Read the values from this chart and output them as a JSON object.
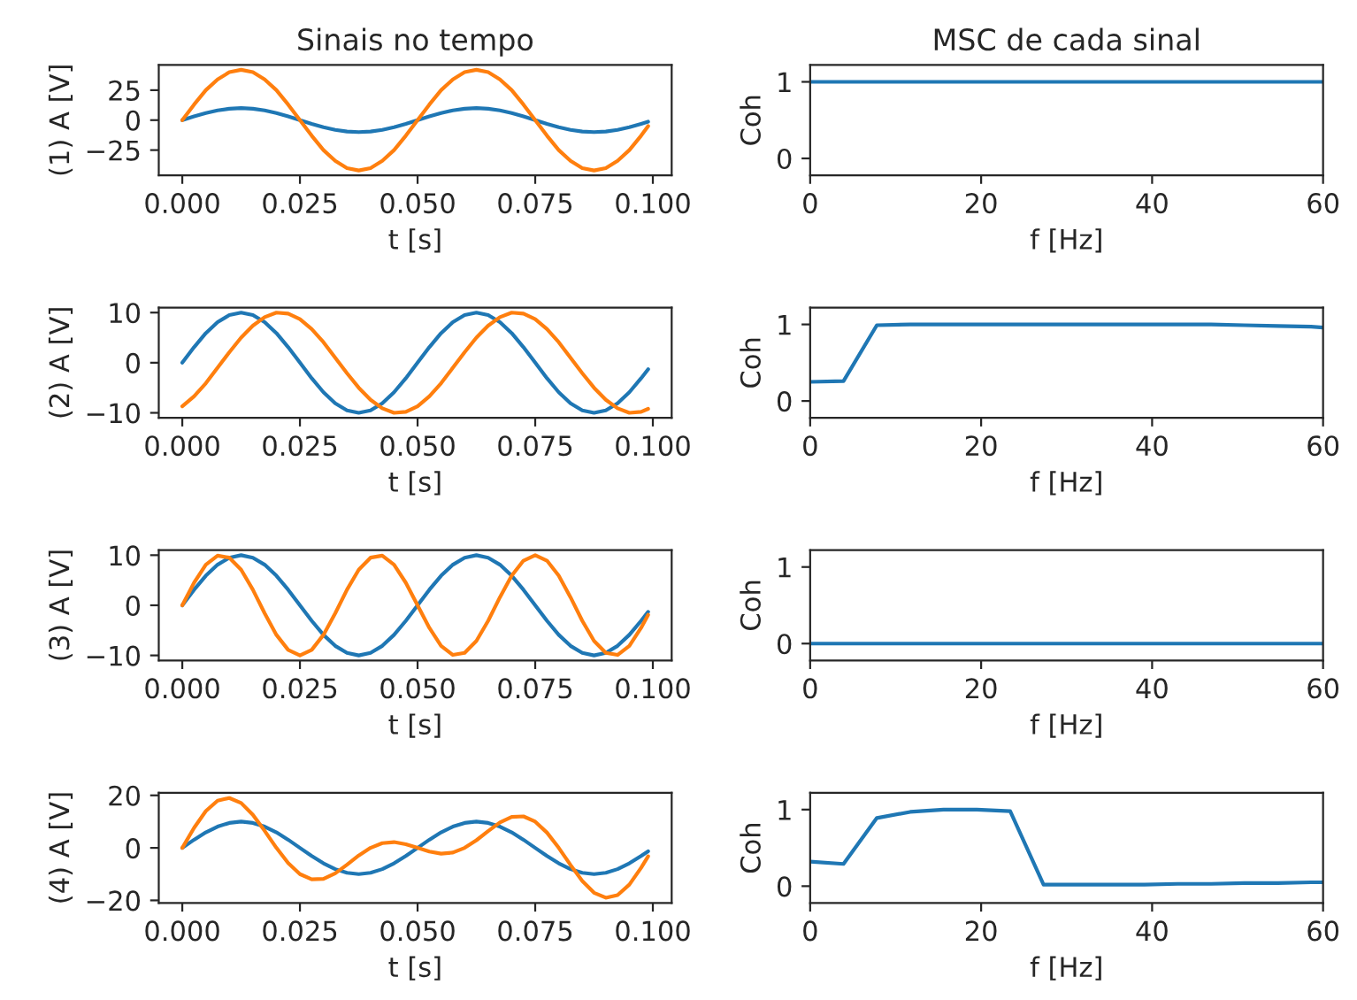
{
  "chart_data": [
    {
      "type": "line",
      "title": "Sinais no tempo",
      "xlabel": "t [s]",
      "ylabel": "(1) A [V]",
      "xlim": [
        -0.005,
        0.104
      ],
      "xticks": [
        {
          "value": 0,
          "label": "0.000"
        },
        {
          "value": 0.025,
          "label": "0.025"
        },
        {
          "value": 0.05,
          "label": "0.050"
        },
        {
          "value": 0.075,
          "label": "0.075"
        },
        {
          "value": 0.1,
          "label": "0.100"
        }
      ],
      "ylim": [
        -46,
        46
      ],
      "yticks": [
        {
          "value": -25,
          "label": "−25"
        },
        0,
        25
      ],
      "grid": false,
      "x": [
        0,
        0.0025,
        0.005,
        0.0075,
        0.01,
        0.0125,
        0.015,
        0.0175,
        0.02,
        0.0225,
        0.025,
        0.0275,
        0.03,
        0.0325,
        0.035,
        0.0375,
        0.04,
        0.0425,
        0.045,
        0.0475,
        0.05,
        0.0525,
        0.055,
        0.0575,
        0.06,
        0.0625,
        0.065,
        0.0675,
        0.07,
        0.0725,
        0.075,
        0.0775,
        0.08,
        0.0825,
        0.085,
        0.0875,
        0.09,
        0.0925,
        0.095,
        0.0975,
        0.099
      ],
      "series": [
        {
          "color": "#1f77b4",
          "values": [
            0,
            3.1,
            5.9,
            8.1,
            9.5,
            10,
            9.5,
            8.1,
            5.9,
            3.1,
            0,
            -3.1,
            -5.9,
            -8.1,
            -9.5,
            -10,
            -9.5,
            -8.1,
            -5.9,
            -3.1,
            0,
            3.1,
            5.9,
            8.1,
            9.5,
            10,
            9.5,
            8.1,
            5.9,
            3.1,
            0,
            -3.1,
            -5.9,
            -8.1,
            -9.5,
            -10,
            -9.5,
            -8.1,
            -5.9,
            -3.1,
            -1.3
          ]
        },
        {
          "color": "#ff7f0e",
          "values": [
            0,
            13,
            25,
            34,
            40,
            42,
            40,
            34,
            25,
            13,
            0,
            -13,
            -25,
            -34,
            -40,
            -42,
            -40,
            -34,
            -25,
            -13,
            0,
            13,
            25,
            34,
            40,
            42,
            40,
            34,
            25,
            13,
            0,
            -13,
            -25,
            -34,
            -40,
            -42,
            -40,
            -34,
            -25,
            -13,
            -5
          ]
        }
      ]
    },
    {
      "type": "line",
      "title": "MSC de cada sinal",
      "xlabel": "f [Hz]",
      "ylabel": "Coh",
      "xlim": [
        0,
        60
      ],
      "xticks": [
        0,
        20,
        40,
        60
      ],
      "ylim": [
        -0.22,
        1.22
      ],
      "yticks": [
        0,
        1
      ],
      "grid": false,
      "x": [
        0,
        3.9,
        7.8,
        11.7,
        15.6,
        19.5,
        23.4,
        27.3,
        31.2,
        35.2,
        39.1,
        43,
        46.9,
        50.8,
        54.7,
        58.6,
        60
      ],
      "series": [
        {
          "color": "#1f77b4",
          "values": [
            1,
            1,
            1,
            1,
            1,
            1,
            1,
            1,
            1,
            1,
            1,
            1,
            1,
            1,
            1,
            1,
            1
          ]
        }
      ]
    },
    {
      "type": "line",
      "xlabel": "t [s]",
      "ylabel": "(2) A [V]",
      "xlim": [
        -0.005,
        0.104
      ],
      "xticks": [
        {
          "value": 0,
          "label": "0.000"
        },
        {
          "value": 0.025,
          "label": "0.025"
        },
        {
          "value": 0.05,
          "label": "0.050"
        },
        {
          "value": 0.075,
          "label": "0.075"
        },
        {
          "value": 0.1,
          "label": "0.100"
        }
      ],
      "ylim": [
        -11,
        11
      ],
      "yticks": [
        {
          "value": -10,
          "label": "−10"
        },
        0,
        10
      ],
      "grid": false,
      "x": [
        0,
        0.0025,
        0.005,
        0.0075,
        0.01,
        0.0125,
        0.015,
        0.0175,
        0.02,
        0.0225,
        0.025,
        0.0275,
        0.03,
        0.0325,
        0.035,
        0.0375,
        0.04,
        0.0425,
        0.045,
        0.0475,
        0.05,
        0.0525,
        0.055,
        0.0575,
        0.06,
        0.0625,
        0.065,
        0.0675,
        0.07,
        0.0725,
        0.075,
        0.0775,
        0.08,
        0.0825,
        0.085,
        0.0875,
        0.09,
        0.0925,
        0.095,
        0.0975,
        0.099
      ],
      "series": [
        {
          "color": "#1f77b4",
          "values": [
            0,
            3.1,
            5.9,
            8.1,
            9.5,
            10,
            9.5,
            8.1,
            5.9,
            3.1,
            0,
            -3.1,
            -5.9,
            -8.1,
            -9.5,
            -10,
            -9.5,
            -8.1,
            -5.9,
            -3.1,
            0,
            3.1,
            5.9,
            8.1,
            9.5,
            10,
            9.5,
            8.1,
            5.9,
            3.1,
            0,
            -3.1,
            -5.9,
            -8.1,
            -9.5,
            -10,
            -9.5,
            -8.1,
            -5.9,
            -3.1,
            -1.3
          ]
        },
        {
          "color": "#ff7f0e",
          "values": [
            -8.7,
            -6.7,
            -4.1,
            -1.0,
            2.1,
            5.0,
            7.4,
            9.1,
            10.0,
            9.8,
            8.7,
            6.7,
            4.1,
            1.0,
            -2.1,
            -5.0,
            -7.4,
            -9.1,
            -10.0,
            -9.8,
            -8.7,
            -6.7,
            -4.1,
            -1.0,
            2.1,
            5.0,
            7.4,
            9.1,
            10.0,
            9.8,
            8.7,
            6.7,
            4.1,
            1.0,
            -2.1,
            -5.0,
            -7.4,
            -9.1,
            -10.0,
            -9.8,
            -9.2
          ]
        }
      ]
    },
    {
      "type": "line",
      "xlabel": "f [Hz]",
      "ylabel": "Coh",
      "xlim": [
        0,
        60
      ],
      "xticks": [
        0,
        20,
        40,
        60
      ],
      "ylim": [
        -0.22,
        1.22
      ],
      "yticks": [
        0,
        1
      ],
      "grid": false,
      "x": [
        0,
        3.9,
        7.8,
        11.7,
        15.6,
        19.5,
        23.4,
        27.3,
        31.2,
        35.2,
        39.1,
        43,
        46.9,
        50.8,
        54.7,
        58.6,
        60
      ],
      "series": [
        {
          "color": "#1f77b4",
          "values": [
            0.25,
            0.26,
            0.99,
            1,
            1,
            1,
            1,
            1,
            1,
            1,
            1,
            1,
            1,
            0.99,
            0.98,
            0.97,
            0.96
          ]
        }
      ]
    },
    {
      "type": "line",
      "xlabel": "t [s]",
      "ylabel": "(3) A [V]",
      "xlim": [
        -0.005,
        0.104
      ],
      "xticks": [
        {
          "value": 0,
          "label": "0.000"
        },
        {
          "value": 0.025,
          "label": "0.025"
        },
        {
          "value": 0.05,
          "label": "0.050"
        },
        {
          "value": 0.075,
          "label": "0.075"
        },
        {
          "value": 0.1,
          "label": "0.100"
        }
      ],
      "ylim": [
        -11,
        11
      ],
      "yticks": [
        {
          "value": -10,
          "label": "−10"
        },
        0,
        10
      ],
      "grid": false,
      "x": [
        0,
        0.0025,
        0.005,
        0.0075,
        0.01,
        0.0125,
        0.015,
        0.0175,
        0.02,
        0.0225,
        0.025,
        0.0275,
        0.03,
        0.0325,
        0.035,
        0.0375,
        0.04,
        0.0425,
        0.045,
        0.0475,
        0.05,
        0.0525,
        0.055,
        0.0575,
        0.06,
        0.0625,
        0.065,
        0.0675,
        0.07,
        0.0725,
        0.075,
        0.0775,
        0.08,
        0.0825,
        0.085,
        0.0875,
        0.09,
        0.0925,
        0.095,
        0.0975,
        0.099
      ],
      "series": [
        {
          "color": "#1f77b4",
          "values": [
            0,
            3.1,
            5.9,
            8.1,
            9.5,
            10,
            9.5,
            8.1,
            5.9,
            3.1,
            0,
            -3.1,
            -5.9,
            -8.1,
            -9.5,
            -10,
            -9.5,
            -8.1,
            -5.9,
            -3.1,
            0,
            3.1,
            5.9,
            8.1,
            9.5,
            10,
            9.5,
            8.1,
            5.9,
            3.1,
            0,
            -3.1,
            -5.9,
            -8.1,
            -9.5,
            -10,
            -9.5,
            -8.1,
            -5.9,
            -3.1,
            -1.3
          ]
        },
        {
          "color": "#ff7f0e",
          "values": [
            0,
            4.5,
            8.1,
            9.9,
            9.5,
            7.1,
            3.1,
            -1.6,
            -5.9,
            -8.9,
            -10,
            -8.9,
            -5.9,
            -1.6,
            3.1,
            7.1,
            9.5,
            9.9,
            8.1,
            4.5,
            0,
            -4.5,
            -8.1,
            -9.9,
            -9.5,
            -7.1,
            -3.1,
            1.6,
            5.9,
            8.9,
            10,
            8.9,
            5.9,
            1.6,
            -3.1,
            -7.1,
            -9.5,
            -9.9,
            -8.1,
            -4.5,
            -1.9
          ]
        }
      ]
    },
    {
      "type": "line",
      "xlabel": "f [Hz]",
      "ylabel": "Coh",
      "xlim": [
        0,
        60
      ],
      "xticks": [
        0,
        20,
        40,
        60
      ],
      "ylim": [
        -0.22,
        1.22
      ],
      "yticks": [
        0,
        1
      ],
      "grid": false,
      "x": [
        0,
        3.9,
        7.8,
        11.7,
        15.6,
        19.5,
        23.4,
        27.3,
        31.2,
        35.2,
        39.1,
        43,
        46.9,
        50.8,
        54.7,
        58.6,
        60
      ],
      "series": [
        {
          "color": "#1f77b4",
          "values": [
            0,
            0,
            0,
            0,
            0,
            0,
            0,
            0,
            0,
            0,
            0,
            0,
            0,
            0,
            0,
            0,
            0
          ]
        }
      ]
    },
    {
      "type": "line",
      "xlabel": "t [s]",
      "ylabel": "(4) A [V]",
      "xlim": [
        -0.005,
        0.104
      ],
      "xticks": [
        {
          "value": 0,
          "label": "0.000"
        },
        {
          "value": 0.025,
          "label": "0.025"
        },
        {
          "value": 0.05,
          "label": "0.050"
        },
        {
          "value": 0.075,
          "label": "0.075"
        },
        {
          "value": 0.1,
          "label": "0.100"
        }
      ],
      "ylim": [
        -21,
        21
      ],
      "yticks": [
        {
          "value": -20,
          "label": "−20"
        },
        0,
        20
      ],
      "grid": false,
      "x": [
        0,
        0.0025,
        0.005,
        0.0075,
        0.01,
        0.0125,
        0.015,
        0.0175,
        0.02,
        0.0225,
        0.025,
        0.0275,
        0.03,
        0.0325,
        0.035,
        0.0375,
        0.04,
        0.0425,
        0.045,
        0.0475,
        0.05,
        0.0525,
        0.055,
        0.0575,
        0.06,
        0.0625,
        0.065,
        0.0675,
        0.07,
        0.0725,
        0.075,
        0.0775,
        0.08,
        0.0825,
        0.085,
        0.0875,
        0.09,
        0.0925,
        0.095,
        0.0975,
        0.099
      ],
      "series": [
        {
          "color": "#1f77b4",
          "values": [
            0,
            3.1,
            5.9,
            8.1,
            9.5,
            10,
            9.5,
            8.1,
            5.9,
            3.1,
            0,
            -3.1,
            -5.9,
            -8.1,
            -9.5,
            -10,
            -9.5,
            -8.1,
            -5.9,
            -3.1,
            0,
            3.1,
            5.9,
            8.1,
            9.5,
            10,
            9.5,
            8.1,
            5.9,
            3.1,
            0,
            -3.1,
            -5.9,
            -8.1,
            -9.5,
            -10,
            -9.5,
            -8.1,
            -5.9,
            -3.1,
            -1.3
          ]
        },
        {
          "color": "#ff7f0e",
          "values": [
            0,
            7.6,
            14.0,
            18.0,
            19.0,
            17.1,
            12.6,
            6.5,
            0,
            -5.8,
            -10,
            -12.0,
            -11.8,
            -9.7,
            -6.4,
            -2.9,
            0,
            1.8,
            2.2,
            1.4,
            0,
            -1.4,
            -2.2,
            -1.8,
            0,
            2.9,
            6.4,
            9.7,
            11.8,
            12.0,
            10,
            5.8,
            0,
            -6.5,
            -12.6,
            -17.1,
            -19.0,
            -18.0,
            -14.0,
            -7.6,
            -3.2
          ]
        }
      ]
    },
    {
      "type": "line",
      "xlabel": "f [Hz]",
      "ylabel": "Coh",
      "xlim": [
        0,
        60
      ],
      "xticks": [
        0,
        20,
        40,
        60
      ],
      "ylim": [
        -0.22,
        1.22
      ],
      "yticks": [
        0,
        1
      ],
      "grid": false,
      "x": [
        0,
        3.9,
        7.8,
        11.7,
        15.6,
        19.5,
        23.4,
        27.3,
        31.2,
        35.2,
        39.1,
        43,
        46.9,
        50.8,
        54.7,
        58.6,
        60
      ],
      "series": [
        {
          "color": "#1f77b4",
          "values": [
            0.32,
            0.29,
            0.89,
            0.97,
            1,
            1,
            0.98,
            0.02,
            0.02,
            0.02,
            0.02,
            0.03,
            0.03,
            0.04,
            0.04,
            0.05,
            0.05
          ]
        }
      ]
    }
  ]
}
